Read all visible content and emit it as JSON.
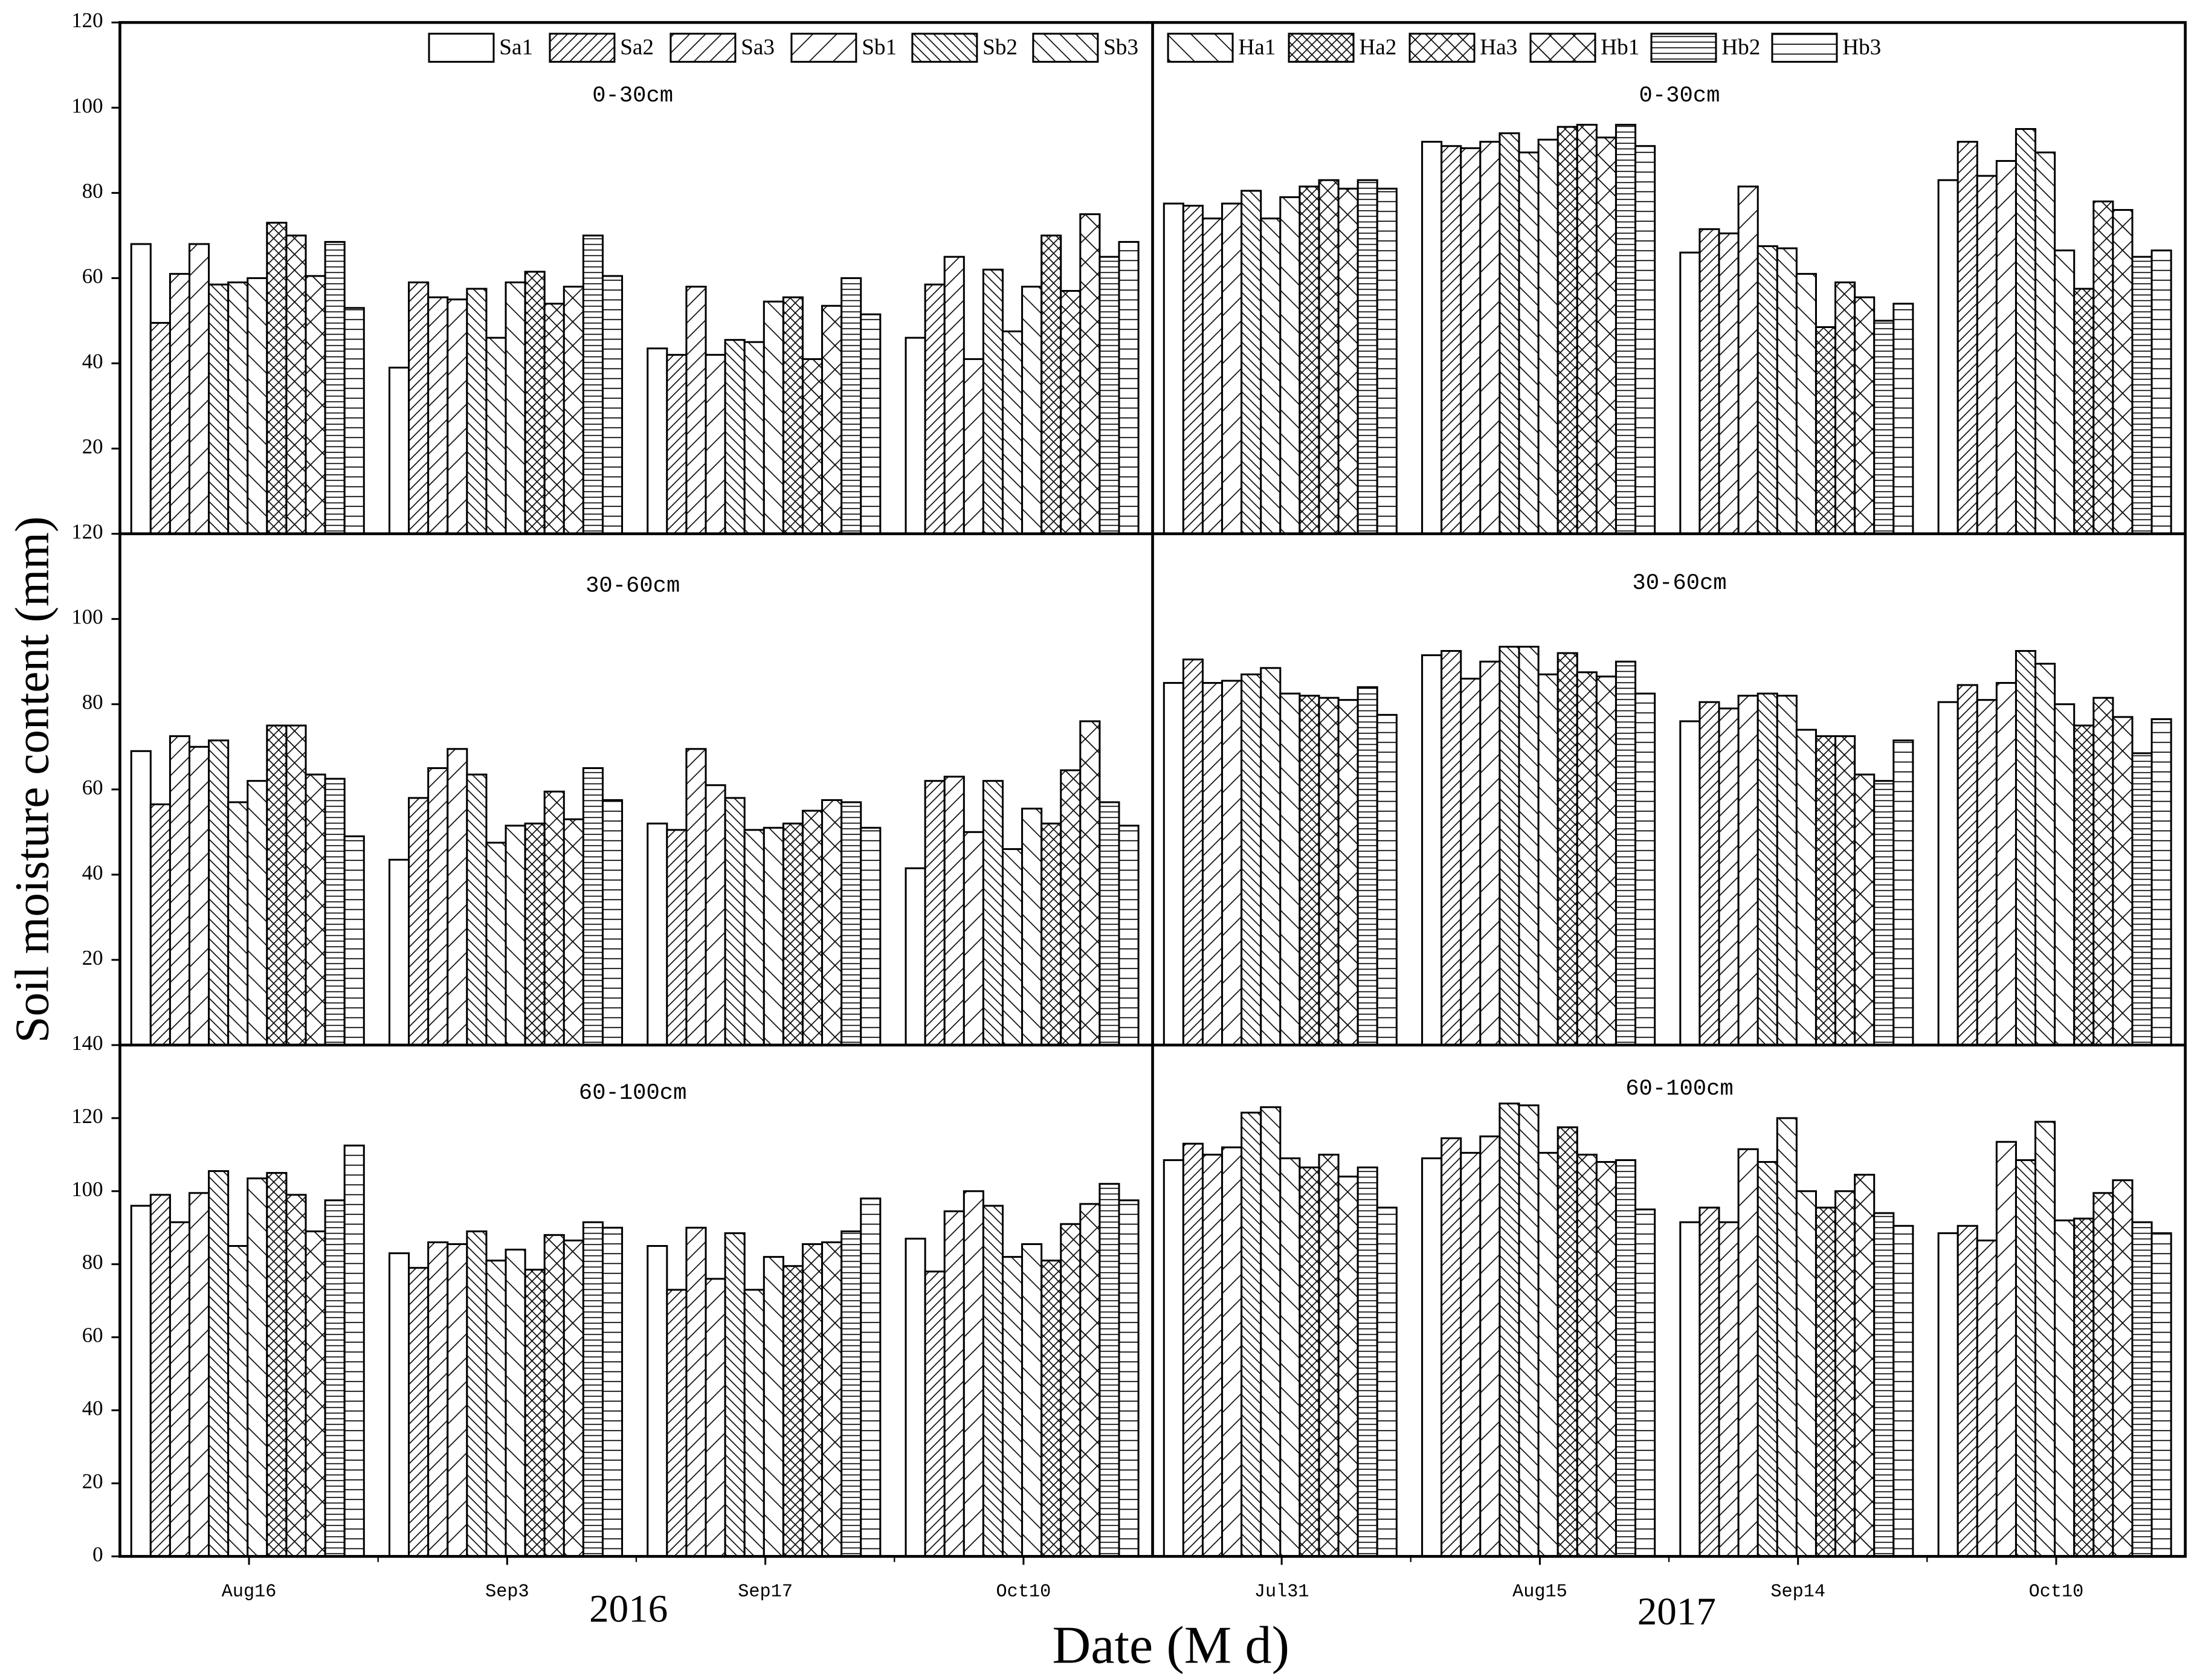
{
  "y_label": "Soil moisture content (mm)",
  "x_label": "Date (M d)",
  "series": [
    {
      "name": "Sa1",
      "hatch": "none"
    },
    {
      "name": "Sa2",
      "hatch": "/",
      "spacing": 5
    },
    {
      "name": "Sa3",
      "hatch": "/",
      "spacing": 8
    },
    {
      "name": "Sb1",
      "hatch": "/",
      "spacing": 12
    },
    {
      "name": "Sb2",
      "hatch": "\\",
      "spacing": 5
    },
    {
      "name": "Sb3",
      "hatch": "\\",
      "spacing": 8
    },
    {
      "name": "Ha1",
      "hatch": "\\",
      "spacing": 12
    },
    {
      "name": "Ha2",
      "hatch": "x",
      "spacing": 5
    },
    {
      "name": "Ha3",
      "hatch": "x",
      "spacing": 8
    },
    {
      "name": "Hb1",
      "hatch": "x",
      "spacing": 12
    },
    {
      "name": "Hb2",
      "hatch": "-",
      "spacing": 4
    },
    {
      "name": "Hb3",
      "hatch": "-",
      "spacing": 7
    }
  ],
  "years": [
    {
      "label": "2016",
      "categories": [
        "Aug16",
        "Sep3",
        "Sep17",
        "Oct10"
      ]
    },
    {
      "label": "2017",
      "categories": [
        "Jul31",
        "Aug15",
        "Sep14",
        "Oct10"
      ]
    }
  ],
  "chart_data": [
    {
      "type": "bar",
      "title": "0-30cm",
      "ylim": [
        0,
        120
      ],
      "yticks": [
        20,
        40,
        60,
        80,
        100,
        120
      ],
      "panels": [
        {
          "series": [
            {
              "values": [
                68,
                39,
                43.5,
                46
              ]
            },
            {
              "values": [
                49.5,
                59,
                42,
                58.5
              ]
            },
            {
              "values": [
                61,
                55.5,
                58,
                65
              ]
            },
            {
              "values": [
                68,
                55,
                42,
                41
              ]
            },
            {
              "values": [
                58.5,
                57.5,
                45.5,
                62
              ]
            },
            {
              "values": [
                59,
                46,
                45,
                47.5
              ]
            },
            {
              "values": [
                60,
                59,
                54.5,
                58
              ]
            },
            {
              "values": [
                73,
                61.5,
                55.5,
                70
              ]
            },
            {
              "values": [
                70,
                54,
                41,
                57
              ]
            },
            {
              "values": [
                60.5,
                58,
                53.5,
                75
              ]
            },
            {
              "values": [
                68.5,
                70,
                60,
                65
              ]
            },
            {
              "values": [
                53,
                60.5,
                51.5,
                68.5
              ]
            }
          ]
        },
        {
          "series": [
            {
              "values": [
                77.5,
                92,
                66,
                83
              ]
            },
            {
              "values": [
                77,
                91,
                71.5,
                92
              ]
            },
            {
              "values": [
                74,
                90.5,
                70.5,
                84
              ]
            },
            {
              "values": [
                77.5,
                92,
                81.5,
                87.5
              ]
            },
            {
              "values": [
                80.5,
                94,
                67.5,
                95
              ]
            },
            {
              "values": [
                74,
                89.5,
                67,
                89.5
              ]
            },
            {
              "values": [
                79,
                92.5,
                61,
                66.5
              ]
            },
            {
              "values": [
                81.5,
                95.5,
                48.5,
                57.5
              ]
            },
            {
              "values": [
                83,
                96,
                59,
                78
              ]
            },
            {
              "values": [
                81,
                93,
                55.5,
                76
              ]
            },
            {
              "values": [
                83,
                96,
                50,
                65
              ]
            },
            {
              "values": [
                81,
                91,
                54,
                66.5
              ]
            }
          ]
        }
      ]
    },
    {
      "type": "bar",
      "title": "30-60cm",
      "ylim": [
        0,
        120
      ],
      "yticks": [
        20,
        40,
        60,
        80,
        100,
        120
      ],
      "panels": [
        {
          "series": [
            {
              "values": [
                69,
                43.5,
                52,
                41.5
              ]
            },
            {
              "values": [
                56.5,
                58,
                50.5,
                62
              ]
            },
            {
              "values": [
                72.5,
                65,
                69.5,
                63
              ]
            },
            {
              "values": [
                70,
                69.5,
                61,
                50
              ]
            },
            {
              "values": [
                71.5,
                63.5,
                58,
                62
              ]
            },
            {
              "values": [
                57,
                47.5,
                50.5,
                46
              ]
            },
            {
              "values": [
                62,
                51.5,
                51,
                55.5
              ]
            },
            {
              "values": [
                75,
                52,
                52,
                52
              ]
            },
            {
              "values": [
                75,
                59.5,
                55,
                64.5
              ]
            },
            {
              "values": [
                63.5,
                53,
                57.5,
                76
              ]
            },
            {
              "values": [
                62.5,
                65,
                57,
                57
              ]
            },
            {
              "values": [
                49,
                57.5,
                51,
                51.5
              ]
            }
          ]
        },
        {
          "series": [
            {
              "values": [
                85,
                91.5,
                76,
                80.5
              ]
            },
            {
              "values": [
                90.5,
                92.5,
                80.5,
                84.5
              ]
            },
            {
              "values": [
                85,
                86,
                79,
                81
              ]
            },
            {
              "values": [
                85.5,
                90,
                82,
                85
              ]
            },
            {
              "values": [
                87,
                93.5,
                82.5,
                92.5
              ]
            },
            {
              "values": [
                88.5,
                93.5,
                82,
                89.5
              ]
            },
            {
              "values": [
                82.5,
                87,
                74,
                80
              ]
            },
            {
              "values": [
                82,
                92,
                72.5,
                75
              ]
            },
            {
              "values": [
                81.5,
                87.5,
                72.5,
                81.5
              ]
            },
            {
              "values": [
                81,
                86.5,
                63.5,
                77
              ]
            },
            {
              "values": [
                84,
                90,
                62,
                68.5
              ]
            },
            {
              "values": [
                77.5,
                82.5,
                71.5,
                76.5
              ]
            }
          ]
        }
      ]
    },
    {
      "type": "bar",
      "title": "60-100cm",
      "ylim": [
        0,
        140
      ],
      "yticks": [
        0,
        20,
        40,
        60,
        80,
        100,
        120,
        140
      ],
      "panels": [
        {
          "series": [
            {
              "values": [
                96,
                83,
                85,
                87
              ]
            },
            {
              "values": [
                99,
                79,
                73,
                78
              ]
            },
            {
              "values": [
                91.5,
                86,
                90,
                94.5
              ]
            },
            {
              "values": [
                99.5,
                85.5,
                76,
                100
              ]
            },
            {
              "values": [
                105.5,
                89,
                88.5,
                96
              ]
            },
            {
              "values": [
                85,
                81,
                73,
                82
              ]
            },
            {
              "values": [
                103.5,
                84,
                82,
                85.5
              ]
            },
            {
              "values": [
                105,
                78.5,
                79.5,
                81
              ]
            },
            {
              "values": [
                99,
                88,
                85.5,
                91
              ]
            },
            {
              "values": [
                89,
                86.5,
                86,
                96.5
              ]
            },
            {
              "values": [
                97.5,
                91.5,
                89,
                102
              ]
            },
            {
              "values": [
                112.5,
                90,
                98,
                97.5
              ]
            }
          ]
        },
        {
          "series": [
            {
              "values": [
                108.5,
                109,
                91.5,
                88.5
              ]
            },
            {
              "values": [
                113,
                114.5,
                95.5,
                90.5
              ]
            },
            {
              "values": [
                110,
                110.5,
                91.5,
                86.5
              ]
            },
            {
              "values": [
                112,
                115,
                111.5,
                113.5
              ]
            },
            {
              "values": [
                121.5,
                124,
                108,
                108.5
              ]
            },
            {
              "values": [
                123,
                123.5,
                120,
                119
              ]
            },
            {
              "values": [
                109,
                110.5,
                100,
                92
              ]
            },
            {
              "values": [
                106.5,
                117.5,
                95.5,
                92.5
              ]
            },
            {
              "values": [
                110,
                110,
                100,
                99.5
              ]
            },
            {
              "values": [
                104,
                108,
                104.5,
                103
              ]
            },
            {
              "values": [
                106.5,
                108.5,
                94,
                91.5
              ]
            },
            {
              "values": [
                95.5,
                95,
                90.5,
                88.5
              ]
            }
          ]
        }
      ]
    }
  ]
}
